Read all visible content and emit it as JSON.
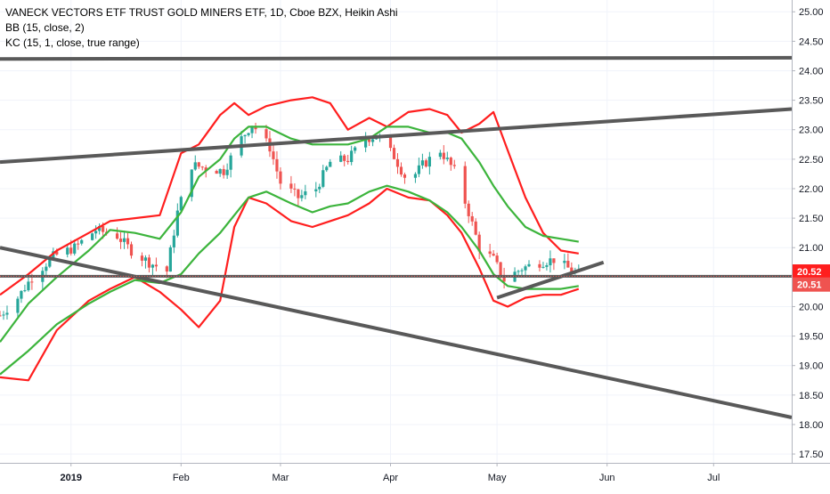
{
  "legend": {
    "title": "VANECK VECTORS ETF TRUST GOLD MINERS ETF, 1D, Cboe BZX, Heikin Ashi",
    "bb": "BB (15, close, 2)",
    "kc": "KC (15, 1, close, true range)"
  },
  "colors": {
    "up": "#26a69a",
    "down": "#ef5350",
    "bb_band": "#ff1e1e",
    "kc_band": "#3cb43c",
    "trendline": "#595959",
    "price_line": "#ef5350",
    "axis_text": "#131722"
  },
  "chart_data": {
    "type": "candlestick",
    "title": "VANECK VECTORS ETF TRUST GOLD MINERS ETF, 1D, Cboe BZX, Heikin Ashi",
    "indicators": [
      "BB (15, close, 2)",
      "KC (15, 1, close, true range)"
    ],
    "ylim": [
      17.35,
      25.2
    ],
    "x_range": [
      "2018-12-12",
      "2019-07-23"
    ],
    "x_tick_labels": [
      {
        "label": "2019",
        "date": "2019-01-01"
      },
      {
        "label": "Feb",
        "date": "2019-02-01"
      },
      {
        "label": "Mar",
        "date": "2019-03-01"
      },
      {
        "label": "Apr",
        "date": "2019-04-01"
      },
      {
        "label": "May",
        "date": "2019-05-01"
      },
      {
        "label": "Jun",
        "date": "2019-06-01"
      },
      {
        "label": "Jul",
        "date": "2019-07-01"
      }
    ],
    "y_ticks": [
      "17.50",
      "18.00",
      "18.50",
      "19.00",
      "19.50",
      "20.00",
      "20.50",
      "21.00",
      "21.50",
      "22.00",
      "22.50",
      "23.00",
      "23.50",
      "24.00",
      "24.50",
      "25.00"
    ],
    "price_labels": [
      {
        "value": 20.52,
        "label": "20.52"
      },
      {
        "value": 20.51,
        "label": "20.51"
      }
    ],
    "closes": [
      {
        "date": "2018-12-12",
        "close": 19.85
      },
      {
        "date": "2018-12-17",
        "close": 20.15
      },
      {
        "date": "2018-12-21",
        "close": 20.5
      },
      {
        "date": "2018-12-27",
        "close": 20.85
      },
      {
        "date": "2019-01-02",
        "close": 21.0
      },
      {
        "date": "2019-01-08",
        "close": 21.3
      },
      {
        "date": "2019-01-14",
        "close": 21.2
      },
      {
        "date": "2019-01-18",
        "close": 20.95
      },
      {
        "date": "2019-01-23",
        "close": 20.75
      },
      {
        "date": "2019-01-28",
        "close": 20.6
      },
      {
        "date": "2019-01-31",
        "close": 21.6
      },
      {
        "date": "2019-02-04",
        "close": 22.4
      },
      {
        "date": "2019-02-08",
        "close": 22.35
      },
      {
        "date": "2019-02-13",
        "close": 22.3
      },
      {
        "date": "2019-02-18",
        "close": 22.85
      },
      {
        "date": "2019-02-21",
        "close": 23.1
      },
      {
        "date": "2019-02-26",
        "close": 22.7
      },
      {
        "date": "2019-03-01",
        "close": 22.1
      },
      {
        "date": "2019-03-06",
        "close": 21.85
      },
      {
        "date": "2019-03-11",
        "close": 22.0
      },
      {
        "date": "2019-03-15",
        "close": 22.45
      },
      {
        "date": "2019-03-20",
        "close": 22.5
      },
      {
        "date": "2019-03-25",
        "close": 22.85
      },
      {
        "date": "2019-03-28",
        "close": 22.9
      },
      {
        "date": "2019-04-02",
        "close": 22.55
      },
      {
        "date": "2019-04-06",
        "close": 22.1
      },
      {
        "date": "2019-04-10",
        "close": 22.4
      },
      {
        "date": "2019-04-15",
        "close": 22.65
      },
      {
        "date": "2019-04-19",
        "close": 22.3
      },
      {
        "date": "2019-04-23",
        "close": 21.6
      },
      {
        "date": "2019-04-26",
        "close": 21.0
      },
      {
        "date": "2019-04-30",
        "close": 20.8
      },
      {
        "date": "2019-05-03",
        "close": 20.45
      },
      {
        "date": "2019-05-08",
        "close": 20.65
      },
      {
        "date": "2019-05-13",
        "close": 20.75
      },
      {
        "date": "2019-05-17",
        "close": 20.8
      },
      {
        "date": "2019-05-21",
        "close": 20.65
      },
      {
        "date": "2019-05-24",
        "close": 20.55
      }
    ],
    "bb_upper": [
      {
        "date": "2018-12-12",
        "v": 20.2
      },
      {
        "date": "2018-12-20",
        "v": 20.55
      },
      {
        "date": "2018-12-28",
        "v": 20.95
      },
      {
        "date": "2019-01-06",
        "v": 21.25
      },
      {
        "date": "2019-01-12",
        "v": 21.45
      },
      {
        "date": "2019-01-19",
        "v": 21.5
      },
      {
        "date": "2019-01-26",
        "v": 21.55
      },
      {
        "date": "2019-02-01",
        "v": 22.6
      },
      {
        "date": "2019-02-06",
        "v": 22.75
      },
      {
        "date": "2019-02-12",
        "v": 23.25
      },
      {
        "date": "2019-02-16",
        "v": 23.45
      },
      {
        "date": "2019-02-20",
        "v": 23.25
      },
      {
        "date": "2019-02-25",
        "v": 23.4
      },
      {
        "date": "2019-03-04",
        "v": 23.5
      },
      {
        "date": "2019-03-10",
        "v": 23.55
      },
      {
        "date": "2019-03-15",
        "v": 23.45
      },
      {
        "date": "2019-03-20",
        "v": 23.0
      },
      {
        "date": "2019-03-26",
        "v": 23.2
      },
      {
        "date": "2019-03-31",
        "v": 23.05
      },
      {
        "date": "2019-04-06",
        "v": 23.3
      },
      {
        "date": "2019-04-12",
        "v": 23.35
      },
      {
        "date": "2019-04-17",
        "v": 23.25
      },
      {
        "date": "2019-04-21",
        "v": 22.95
      },
      {
        "date": "2019-04-26",
        "v": 23.1
      },
      {
        "date": "2019-04-30",
        "v": 23.3
      },
      {
        "date": "2019-05-04",
        "v": 22.65
      },
      {
        "date": "2019-05-09",
        "v": 21.85
      },
      {
        "date": "2019-05-14",
        "v": 21.25
      },
      {
        "date": "2019-05-19",
        "v": 20.95
      },
      {
        "date": "2019-05-24",
        "v": 20.9
      }
    ],
    "bb_lower": [
      {
        "date": "2018-12-12",
        "v": 18.8
      },
      {
        "date": "2018-12-20",
        "v": 18.75
      },
      {
        "date": "2018-12-28",
        "v": 19.6
      },
      {
        "date": "2019-01-06",
        "v": 20.1
      },
      {
        "date": "2019-01-12",
        "v": 20.3
      },
      {
        "date": "2019-01-19",
        "v": 20.5
      },
      {
        "date": "2019-01-26",
        "v": 20.25
      },
      {
        "date": "2019-02-01",
        "v": 19.95
      },
      {
        "date": "2019-02-06",
        "v": 19.65
      },
      {
        "date": "2019-02-12",
        "v": 20.1
      },
      {
        "date": "2019-02-16",
        "v": 21.35
      },
      {
        "date": "2019-02-20",
        "v": 21.85
      },
      {
        "date": "2019-02-25",
        "v": 21.75
      },
      {
        "date": "2019-03-04",
        "v": 21.45
      },
      {
        "date": "2019-03-10",
        "v": 21.35
      },
      {
        "date": "2019-03-15",
        "v": 21.45
      },
      {
        "date": "2019-03-20",
        "v": 21.55
      },
      {
        "date": "2019-03-26",
        "v": 21.75
      },
      {
        "date": "2019-03-31",
        "v": 22.0
      },
      {
        "date": "2019-04-06",
        "v": 21.85
      },
      {
        "date": "2019-04-12",
        "v": 21.8
      },
      {
        "date": "2019-04-17",
        "v": 21.55
      },
      {
        "date": "2019-04-21",
        "v": 21.25
      },
      {
        "date": "2019-04-26",
        "v": 20.65
      },
      {
        "date": "2019-04-30",
        "v": 20.1
      },
      {
        "date": "2019-05-04",
        "v": 20.0
      },
      {
        "date": "2019-05-09",
        "v": 20.15
      },
      {
        "date": "2019-05-14",
        "v": 20.2
      },
      {
        "date": "2019-05-19",
        "v": 20.2
      },
      {
        "date": "2019-05-24",
        "v": 20.3
      }
    ],
    "kc_upper": [
      {
        "date": "2018-12-12",
        "v": 19.4
      },
      {
        "date": "2018-12-20",
        "v": 20.05
      },
      {
        "date": "2018-12-28",
        "v": 20.5
      },
      {
        "date": "2019-01-06",
        "v": 20.95
      },
      {
        "date": "2019-01-12",
        "v": 21.3
      },
      {
        "date": "2019-01-19",
        "v": 21.25
      },
      {
        "date": "2019-01-26",
        "v": 21.15
      },
      {
        "date": "2019-02-01",
        "v": 21.6
      },
      {
        "date": "2019-02-06",
        "v": 22.2
      },
      {
        "date": "2019-02-12",
        "v": 22.5
      },
      {
        "date": "2019-02-16",
        "v": 22.85
      },
      {
        "date": "2019-02-20",
        "v": 23.05
      },
      {
        "date": "2019-02-25",
        "v": 23.05
      },
      {
        "date": "2019-03-04",
        "v": 22.85
      },
      {
        "date": "2019-03-10",
        "v": 22.75
      },
      {
        "date": "2019-03-15",
        "v": 22.75
      },
      {
        "date": "2019-03-20",
        "v": 22.75
      },
      {
        "date": "2019-03-26",
        "v": 22.85
      },
      {
        "date": "2019-03-31",
        "v": 23.05
      },
      {
        "date": "2019-04-06",
        "v": 23.05
      },
      {
        "date": "2019-04-12",
        "v": 22.95
      },
      {
        "date": "2019-04-17",
        "v": 22.95
      },
      {
        "date": "2019-04-21",
        "v": 22.85
      },
      {
        "date": "2019-04-26",
        "v": 22.45
      },
      {
        "date": "2019-04-30",
        "v": 22.05
      },
      {
        "date": "2019-05-04",
        "v": 21.7
      },
      {
        "date": "2019-05-09",
        "v": 21.35
      },
      {
        "date": "2019-05-14",
        "v": 21.2
      },
      {
        "date": "2019-05-19",
        "v": 21.15
      },
      {
        "date": "2019-05-24",
        "v": 21.1
      }
    ],
    "kc_lower": [
      {
        "date": "2018-12-12",
        "v": 18.85
      },
      {
        "date": "2018-12-20",
        "v": 19.25
      },
      {
        "date": "2018-12-28",
        "v": 19.7
      },
      {
        "date": "2019-01-06",
        "v": 20.05
      },
      {
        "date": "2019-01-12",
        "v": 20.25
      },
      {
        "date": "2019-01-19",
        "v": 20.45
      },
      {
        "date": "2019-01-26",
        "v": 20.4
      },
      {
        "date": "2019-02-01",
        "v": 20.55
      },
      {
        "date": "2019-02-06",
        "v": 20.9
      },
      {
        "date": "2019-02-12",
        "v": 21.25
      },
      {
        "date": "2019-02-16",
        "v": 21.55
      },
      {
        "date": "2019-02-20",
        "v": 21.85
      },
      {
        "date": "2019-02-25",
        "v": 21.95
      },
      {
        "date": "2019-03-04",
        "v": 21.75
      },
      {
        "date": "2019-03-10",
        "v": 21.6
      },
      {
        "date": "2019-03-15",
        "v": 21.7
      },
      {
        "date": "2019-03-20",
        "v": 21.75
      },
      {
        "date": "2019-03-26",
        "v": 21.95
      },
      {
        "date": "2019-03-31",
        "v": 22.05
      },
      {
        "date": "2019-04-06",
        "v": 21.95
      },
      {
        "date": "2019-04-12",
        "v": 21.8
      },
      {
        "date": "2019-04-17",
        "v": 21.6
      },
      {
        "date": "2019-04-21",
        "v": 21.35
      },
      {
        "date": "2019-04-26",
        "v": 20.95
      },
      {
        "date": "2019-04-30",
        "v": 20.55
      },
      {
        "date": "2019-05-04",
        "v": 20.35
      },
      {
        "date": "2019-05-09",
        "v": 20.3
      },
      {
        "date": "2019-05-14",
        "v": 20.3
      },
      {
        "date": "2019-05-19",
        "v": 20.3
      },
      {
        "date": "2019-05-24",
        "v": 20.35
      }
    ],
    "trendlines": [
      {
        "name": "upper-horizontal",
        "from": {
          "date": "2018-12-12",
          "v": 24.2
        },
        "to": {
          "date": "2019-07-23",
          "v": 24.22
        }
      },
      {
        "name": "rising-channel",
        "from": {
          "date": "2018-12-12",
          "v": 22.45
        },
        "to": {
          "date": "2019-07-23",
          "v": 23.35
        }
      },
      {
        "name": "falling-support",
        "from": {
          "date": "2018-12-12",
          "v": 21.0
        },
        "to": {
          "date": "2019-07-23",
          "v": 18.12
        }
      },
      {
        "name": "short-rising-support",
        "from": {
          "date": "2019-05-01",
          "v": 20.15
        },
        "to": {
          "date": "2019-05-31",
          "v": 20.75
        }
      }
    ],
    "horizontal_line": {
      "value": 20.515
    }
  }
}
